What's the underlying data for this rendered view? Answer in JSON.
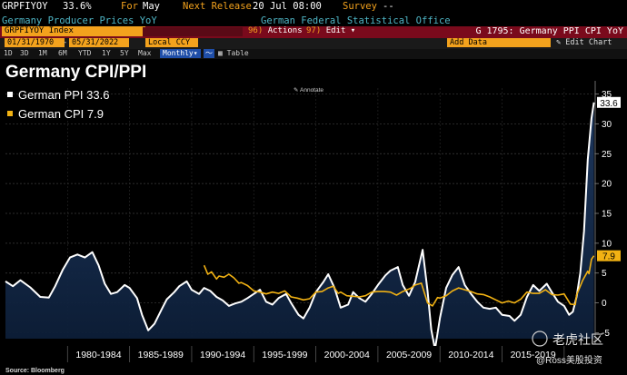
{
  "header": {
    "ticker": "GRPFIYOY",
    "last_value": "33.6%",
    "period_prefix": "For",
    "period": "May",
    "next_release_label": "Next Release",
    "next_release": "20 Jul 08:00",
    "survey_label": "Survey",
    "survey_value": "--",
    "description": "Germany Producer Prices YoY",
    "source": "German Federal Statistical Office"
  },
  "command_bar": {
    "security": "GRPFIYOY Index",
    "actions_label": "Actions",
    "actions_num": "96)",
    "edit_label": "Edit",
    "edit_num": "97)",
    "function_title": "G 1795: Germany PPI CPI YoY"
  },
  "date_bar": {
    "start_date": "01/31/1970",
    "end_date": "05/31/2022",
    "currency": "Local CCY",
    "add_data": "Add Data",
    "edit_chart": "Edit Chart"
  },
  "range_bar": {
    "ranges": [
      "1D",
      "3D",
      "1M",
      "6M",
      "YTD",
      "1Y",
      "5Y",
      "Max"
    ],
    "frequency": "Monthly",
    "table_label": "Table",
    "annotate_label": "Annotate"
  },
  "chart_data": {
    "type": "line",
    "title": "Germany CPI/PPI",
    "source_note": "Source: Bloomberg",
    "watermark": "老虎社区",
    "watermark2": "@Ross美股投资",
    "x_tick_labels": [
      "1980-1984",
      "1985-1989",
      "1990-1994",
      "1995-1999",
      "2000-2004",
      "2005-2009",
      "2010-2014",
      "2015-2019"
    ],
    "ylim": [
      -6,
      36
    ],
    "y_ticks": [
      -5,
      0,
      5,
      10,
      15,
      20,
      25,
      30,
      35
    ],
    "x_range": [
      1975,
      2022.5
    ],
    "series": [
      {
        "name": "German PPI",
        "last_label": "33.6",
        "color": "#ffffff",
        "fill": true,
        "points": [
          [
            1975,
            3.6
          ],
          [
            1975.6,
            2.8
          ],
          [
            1976.2,
            3.8
          ],
          [
            1977,
            2.6
          ],
          [
            1977.8,
            1.0
          ],
          [
            1978.5,
            0.9
          ],
          [
            1979,
            2.8
          ],
          [
            1979.6,
            5.5
          ],
          [
            1980.2,
            7.6
          ],
          [
            1980.8,
            8.1
          ],
          [
            1981.4,
            7.6
          ],
          [
            1982,
            8.5
          ],
          [
            1982.5,
            6.3
          ],
          [
            1983,
            3.2
          ],
          [
            1983.5,
            1.5
          ],
          [
            1984,
            1.8
          ],
          [
            1984.6,
            3.0
          ],
          [
            1985,
            2.5
          ],
          [
            1985.6,
            0.8
          ],
          [
            1986,
            -2.0
          ],
          [
            1986.5,
            -4.6
          ],
          [
            1987,
            -3.5
          ],
          [
            1987.6,
            -1.0
          ],
          [
            1988,
            0.6
          ],
          [
            1988.6,
            1.8
          ],
          [
            1989,
            2.8
          ],
          [
            1989.6,
            3.6
          ],
          [
            1990,
            2.2
          ],
          [
            1990.6,
            1.5
          ],
          [
            1991,
            2.5
          ],
          [
            1991.5,
            2.0
          ],
          [
            1992,
            1.0
          ],
          [
            1992.5,
            0.4
          ],
          [
            1993,
            -0.5
          ],
          [
            1993.5,
            -0.1
          ],
          [
            1994,
            0.2
          ],
          [
            1994.5,
            0.8
          ],
          [
            1995,
            1.5
          ],
          [
            1995.5,
            2.2
          ],
          [
            1996,
            0.2
          ],
          [
            1996.5,
            -0.3
          ],
          [
            1997,
            0.8
          ],
          [
            1997.6,
            1.5
          ],
          [
            1998,
            0.0
          ],
          [
            1998.6,
            -2.0
          ],
          [
            1999,
            -2.6
          ],
          [
            1999.5,
            -0.8
          ],
          [
            2000,
            1.8
          ],
          [
            2000.6,
            3.5
          ],
          [
            2001,
            4.8
          ],
          [
            2001.5,
            2.5
          ],
          [
            2002,
            -0.8
          ],
          [
            2002.6,
            -0.3
          ],
          [
            2003,
            1.8
          ],
          [
            2003.5,
            0.8
          ],
          [
            2004,
            0.2
          ],
          [
            2004.5,
            1.5
          ],
          [
            2005,
            3.0
          ],
          [
            2005.6,
            4.6
          ],
          [
            2006,
            5.4
          ],
          [
            2006.6,
            6.0
          ],
          [
            2007,
            3.0
          ],
          [
            2007.5,
            1.2
          ],
          [
            2008,
            3.5
          ],
          [
            2008.6,
            8.9
          ],
          [
            2009,
            2.0
          ],
          [
            2009.3,
            -4.5
          ],
          [
            2009.6,
            -7.8
          ],
          [
            2010,
            -2.5
          ],
          [
            2010.5,
            2.5
          ],
          [
            2011,
            4.7
          ],
          [
            2011.5,
            6.0
          ],
          [
            2012,
            3.0
          ],
          [
            2012.5,
            1.5
          ],
          [
            2013,
            0.2
          ],
          [
            2013.5,
            -0.8
          ],
          [
            2014,
            -1.0
          ],
          [
            2014.5,
            -0.8
          ],
          [
            2015,
            -2.0
          ],
          [
            2015.6,
            -2.2
          ],
          [
            2016,
            -3.0
          ],
          [
            2016.5,
            -2.0
          ],
          [
            2017,
            1.0
          ],
          [
            2017.5,
            3.0
          ],
          [
            2018,
            2.0
          ],
          [
            2018.6,
            3.2
          ],
          [
            2019,
            1.8
          ],
          [
            2019.5,
            0.2
          ],
          [
            2020,
            -0.5
          ],
          [
            2020.4,
            -2.0
          ],
          [
            2020.7,
            -1.5
          ],
          [
            2021,
            1.0
          ],
          [
            2021.3,
            5.0
          ],
          [
            2021.6,
            12.0
          ],
          [
            2021.9,
            24.0
          ],
          [
            2022.2,
            30.9
          ],
          [
            2022.4,
            33.6
          ]
        ]
      },
      {
        "name": "German CPI",
        "last_label": "7.9",
        "color": "#f2b213",
        "fill": false,
        "points": [
          [
            1991,
            6.3
          ],
          [
            1991.3,
            4.8
          ],
          [
            1991.6,
            5.2
          ],
          [
            1992,
            4.0
          ],
          [
            1992.2,
            4.5
          ],
          [
            1992.6,
            4.3
          ],
          [
            1993,
            4.8
          ],
          [
            1993.4,
            4.2
          ],
          [
            1993.8,
            3.3
          ],
          [
            1994,
            3.4
          ],
          [
            1994.5,
            2.9
          ],
          [
            1995,
            2.0
          ],
          [
            1995.5,
            1.8
          ],
          [
            1996,
            1.5
          ],
          [
            1996.5,
            1.8
          ],
          [
            1997,
            1.6
          ],
          [
            1997.5,
            2.0
          ],
          [
            1998,
            1.0
          ],
          [
            1998.5,
            0.8
          ],
          [
            1999,
            0.5
          ],
          [
            1999.5,
            0.7
          ],
          [
            2000,
            1.8
          ],
          [
            2000.5,
            1.9
          ],
          [
            2001,
            2.5
          ],
          [
            2001.4,
            2.8
          ],
          [
            2001.8,
            1.6
          ],
          [
            2002,
            1.8
          ],
          [
            2002.5,
            1.2
          ],
          [
            2003,
            1.1
          ],
          [
            2003.5,
            1.0
          ],
          [
            2004,
            1.2
          ],
          [
            2004.5,
            1.8
          ],
          [
            2005,
            1.9
          ],
          [
            2005.5,
            1.9
          ],
          [
            2006,
            1.8
          ],
          [
            2006.5,
            1.3
          ],
          [
            2007,
            1.9
          ],
          [
            2007.6,
            2.4
          ],
          [
            2008,
            3.0
          ],
          [
            2008.5,
            3.3
          ],
          [
            2009,
            0.0
          ],
          [
            2009.4,
            -0.5
          ],
          [
            2009.8,
            0.9
          ],
          [
            2010,
            0.8
          ],
          [
            2010.5,
            1.2
          ],
          [
            2011,
            2.0
          ],
          [
            2011.5,
            2.5
          ],
          [
            2012,
            2.2
          ],
          [
            2012.5,
            1.9
          ],
          [
            2013,
            1.5
          ],
          [
            2013.5,
            1.4
          ],
          [
            2014,
            1.0
          ],
          [
            2014.5,
            0.5
          ],
          [
            2015,
            0.0
          ],
          [
            2015.5,
            0.3
          ],
          [
            2016,
            0.0
          ],
          [
            2016.5,
            0.6
          ],
          [
            2017,
            1.8
          ],
          [
            2017.5,
            1.6
          ],
          [
            2018,
            1.6
          ],
          [
            2018.5,
            2.2
          ],
          [
            2019,
            1.4
          ],
          [
            2019.5,
            1.3
          ],
          [
            2020,
            1.5
          ],
          [
            2020.5,
            -0.2
          ],
          [
            2020.9,
            -0.3
          ],
          [
            2021,
            1.3
          ],
          [
            2021.5,
            3.8
          ],
          [
            2021.9,
            5.3
          ],
          [
            2022,
            4.9
          ],
          [
            2022.2,
            7.3
          ],
          [
            2022.4,
            7.9
          ]
        ]
      }
    ]
  }
}
